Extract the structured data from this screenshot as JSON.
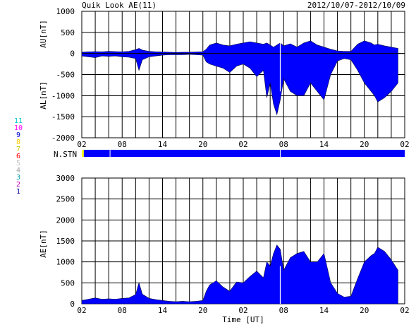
{
  "header": {
    "title": "Quik Look AE(11)",
    "date_range": "2012/10/07-2012/10/09"
  },
  "colors": {
    "fill": "#0000ff",
    "axis": "#000000",
    "grid": "#000000",
    "marker": "#ffff00"
  },
  "station_legend": [
    {
      "n": "11",
      "color": "#00c8c8"
    },
    {
      "n": "10",
      "color": "#ff00ff"
    },
    {
      "n": "9",
      "color": "#0000c8"
    },
    {
      "n": "8",
      "color": "#ffcc00"
    },
    {
      "n": "7",
      "color": "#c8c800"
    },
    {
      "n": "6",
      "color": "#ff0000"
    },
    {
      "n": "5",
      "color": "#c0c0c0"
    },
    {
      "n": "4",
      "color": "#a0a0a0"
    },
    {
      "n": "3",
      "color": "#00a0a0"
    },
    {
      "n": "2",
      "color": "#c000c0"
    },
    {
      "n": "1",
      "color": "#0000a0"
    }
  ],
  "chart_data": [
    {
      "type": "area",
      "name": "AU/AL",
      "ylabel_upper": "AU[nT]",
      "ylabel_lower": "AL[nT]",
      "ylim": [
        -2000,
        1000
      ],
      "yticks": [
        1000,
        500,
        0,
        -500,
        -1000,
        -1500,
        -2000
      ],
      "xlim_hours": [
        0,
        48
      ],
      "xticks": [
        "02",
        "08",
        "14",
        "20",
        "02",
        "08",
        "14",
        "20",
        "02"
      ],
      "x_hours": [
        0,
        1,
        2,
        3,
        4,
        5,
        6,
        7,
        8,
        8.5,
        9,
        10,
        11,
        12,
        13,
        14,
        15,
        16,
        17,
        18,
        18.5,
        19,
        20,
        21,
        22,
        23,
        24,
        25,
        26,
        27,
        27.5,
        28,
        28.5,
        29,
        29.5,
        30,
        31,
        32,
        33,
        34,
        35,
        36,
        37,
        38,
        39,
        40,
        41,
        42,
        43,
        43.5,
        44,
        45,
        46,
        47
      ],
      "au": [
        30,
        40,
        45,
        40,
        50,
        45,
        40,
        50,
        90,
        120,
        80,
        50,
        40,
        35,
        30,
        25,
        30,
        30,
        35,
        40,
        100,
        200,
        250,
        200,
        180,
        220,
        250,
        280,
        250,
        220,
        250,
        200,
        150,
        200,
        250,
        180,
        230,
        150,
        250,
        300,
        200,
        150,
        100,
        60,
        50,
        50,
        220,
        300,
        250,
        200,
        220,
        180,
        150,
        120
      ],
      "al": [
        -60,
        -80,
        -100,
        -60,
        -70,
        -60,
        -80,
        -90,
        -120,
        -400,
        -150,
        -80,
        -60,
        -40,
        -30,
        -30,
        -30,
        -20,
        -30,
        -40,
        -200,
        -250,
        -300,
        -350,
        -450,
        -300,
        -250,
        -350,
        -550,
        -400,
        -1050,
        -700,
        -1200,
        -1450,
        -1100,
        -600,
        -900,
        -1000,
        -1000,
        -700,
        -900,
        -1100,
        -500,
        -180,
        -120,
        -150,
        -400,
        -700,
        -900,
        -1000,
        -1150,
        -1050,
        -900,
        -700
      ]
    },
    {
      "type": "bar",
      "name": "N.STN",
      "label": "N.STN",
      "xlim_hours": [
        0,
        48
      ],
      "segments": [
        {
          "start": 0,
          "end": 0.3,
          "stations": 10
        },
        {
          "start": 0.3,
          "end": 4.2,
          "stations": 11
        },
        {
          "start": 4.2,
          "end": 29.5,
          "stations": 11
        },
        {
          "start": 29.5,
          "end": 48,
          "stations": 11
        }
      ]
    },
    {
      "type": "area",
      "name": "AE",
      "ylabel": "AE[nT]",
      "xlabel": "Time [UT]",
      "ylim": [
        0,
        3000
      ],
      "yticks": [
        3000,
        2500,
        2000,
        1500,
        1000,
        500,
        0
      ],
      "xlim_hours": [
        0,
        48
      ],
      "xticks": [
        "02",
        "08",
        "14",
        "20",
        "02",
        "08",
        "14",
        "20",
        "02"
      ],
      "x_hours": [
        0,
        1,
        2,
        3,
        4,
        5,
        6,
        7,
        8,
        8.5,
        9,
        10,
        11,
        12,
        13,
        14,
        15,
        16,
        17,
        18,
        18.5,
        19,
        20,
        21,
        22,
        23,
        24,
        25,
        26,
        27,
        27.5,
        28,
        28.5,
        29,
        29.5,
        30,
        31,
        32,
        33,
        34,
        35,
        36,
        37,
        38,
        39,
        40,
        41,
        42,
        43,
        43.5,
        44,
        45,
        46,
        47
      ],
      "values": [
        80,
        110,
        140,
        110,
        120,
        110,
        130,
        140,
        220,
        500,
        230,
        130,
        100,
        80,
        60,
        50,
        60,
        50,
        60,
        80,
        300,
        450,
        550,
        400,
        300,
        520,
        500,
        650,
        780,
        620,
        1000,
        900,
        1200,
        1400,
        1300,
        800,
        1100,
        1200,
        1250,
        1000,
        1000,
        1200,
        500,
        250,
        160,
        180,
        600,
        1000,
        1150,
        1200,
        1350,
        1250,
        1050,
        800
      ]
    }
  ]
}
